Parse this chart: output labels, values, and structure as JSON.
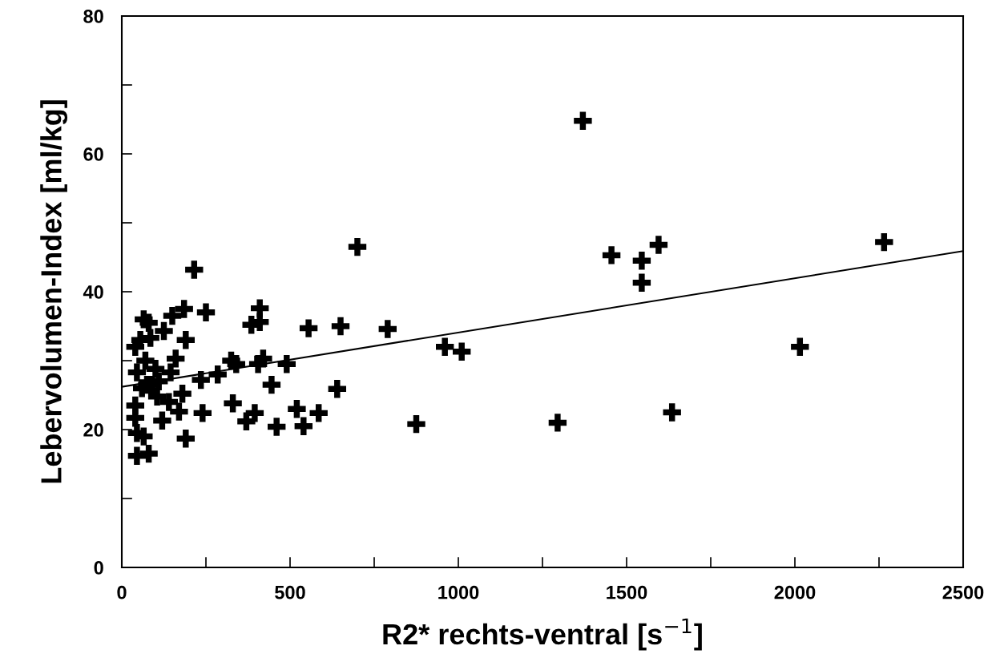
{
  "chart_data": {
    "type": "scatter",
    "xlabel": "R2* rechts-ventral [s$^{−1}$]",
    "ylabel": "Lebervolumen-Index [ml/kg]",
    "xlim": [
      0,
      2500
    ],
    "ylim": [
      0,
      80
    ],
    "xticks": [
      0,
      {
        "value": 250,
        "label": null
      },
      500,
      {
        "value": 750,
        "label": null
      },
      1000,
      {
        "value": 1250,
        "label": null
      },
      1500,
      {
        "value": 1750,
        "label": null
      },
      2000,
      {
        "value": 2250,
        "label": null
      },
      2500
    ],
    "yticks": [
      0,
      {
        "value": 10,
        "label": null
      },
      20,
      {
        "value": 30,
        "label": null
      },
      40,
      {
        "value": 50,
        "label": null
      },
      60,
      {
        "value": 70,
        "label": null
      },
      80
    ],
    "grid": false,
    "series": [
      {
        "color": "#000000",
        "marker": "cross",
        "x": [
          40,
          45,
          40,
          40,
          45,
          45,
          55,
          65,
          60,
          65,
          70,
          75,
          80,
          80,
          85,
          90,
          100,
          105,
          110,
          120,
          125,
          140,
          145,
          150,
          160,
          170,
          180,
          185,
          190,
          190,
          215,
          235,
          240,
          250,
          285,
          325,
          340,
          330,
          370,
          385,
          395,
          405,
          410,
          410,
          420,
          445,
          460,
          490,
          520,
          540,
          555,
          585,
          640,
          650,
          700,
          790,
          875,
          960,
          1010,
          1295,
          1370,
          1455,
          1545,
          1545,
          1595,
          1635,
          2015,
          2265
        ],
        "values": [
          32,
          28.3,
          23.5,
          21.7,
          19.5,
          16.2,
          33,
          36,
          26,
          19,
          30,
          26.5,
          16.5,
          35.5,
          33.3,
          26.5,
          28.8,
          24.8,
          27,
          21.3,
          34.3,
          24,
          28.3,
          36.5,
          30.3,
          22.6,
          25.2,
          37.5,
          33,
          18.7,
          43.2,
          27.2,
          22.4,
          37,
          28,
          30,
          29.5,
          23.8,
          21.2,
          35.2,
          22.4,
          29.5,
          37.6,
          35.6,
          30.3,
          26.5,
          20.4,
          29.5,
          23,
          20.5,
          34.7,
          22.4,
          25.9,
          35,
          46.5,
          34.6,
          20.8,
          32,
          31.3,
          21,
          64.8,
          45.3,
          44.5,
          41.3,
          46.8,
          22.5,
          32,
          47.2
        ]
      },
      {
        "type": "line",
        "color": "#000000",
        "x": [
          0,
          2500
        ],
        "values": [
          26.2,
          45.9
        ]
      }
    ]
  }
}
